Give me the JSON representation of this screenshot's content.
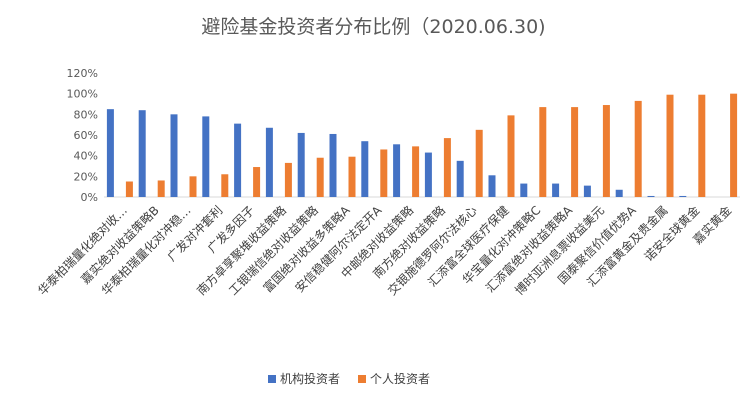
{
  "chart_data": {
    "type": "bar",
    "title": "避险基金投资者分布比例（2020.06.30)",
    "categories": [
      "华泰柏瑞量化绝对收…",
      "嘉实绝对收益策略B",
      "华泰柏瑞量化对冲稳…",
      "广发对冲套利",
      "广发多因子",
      "南方卓享聚堆收益策略",
      "工银瑞信绝对收益策略",
      "富国绝对收益多策略A",
      "安信稳健阿尔法定开A",
      "中邮绝对收益策略",
      "南方绝对收益策略",
      "交银施德罗阿尔法核心",
      "汇添富全球医疗保健",
      "华宝量化对冲策略C",
      "汇添富绝对收益策略A",
      "博时亚洲息票收益美元",
      "国泰聚信价值优势A",
      "汇添富黄金及贵金属",
      "诺安全球黄金",
      "嘉实黄金"
    ],
    "series": [
      {
        "name": "机构投资者",
        "color": "#4472C4",
        "values": [
          85,
          84,
          80,
          78,
          71,
          67,
          62,
          61,
          54,
          51,
          43,
          35,
          21,
          13,
          13,
          11,
          7,
          1,
          1,
          0
        ]
      },
      {
        "name": "个人投资者",
        "color": "#ED7D31",
        "values": [
          15,
          16,
          20,
          22,
          29,
          33,
          38,
          39,
          46,
          49,
          57,
          65,
          79,
          87,
          87,
          89,
          93,
          99,
          99,
          100
        ]
      }
    ],
    "ylim": [
      0,
      120
    ],
    "yticks": [
      "0%",
      "20%",
      "40%",
      "60%",
      "80%",
      "100%",
      "120%"
    ],
    "legend_position": "bottom"
  }
}
